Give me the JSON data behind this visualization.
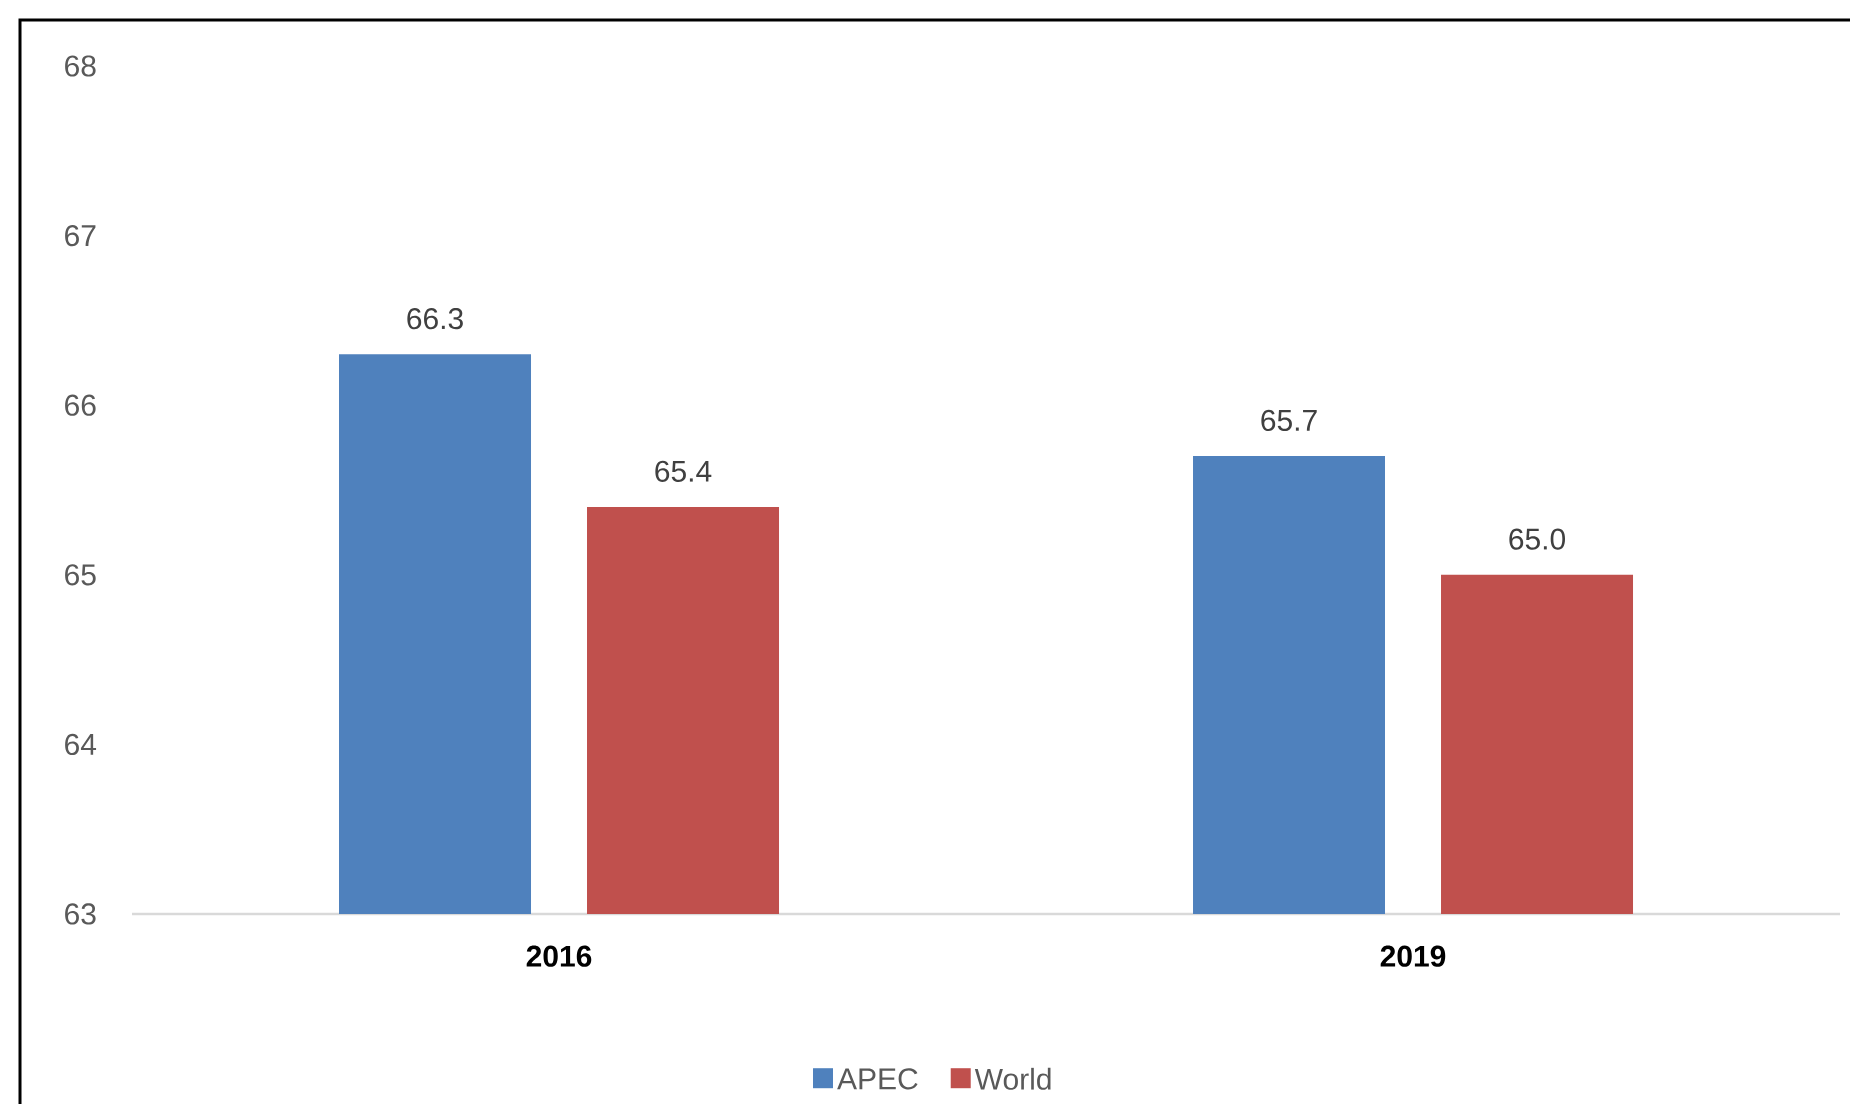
{
  "chart_data": {
    "type": "bar",
    "categories": [
      "2016",
      "2019"
    ],
    "series": [
      {
        "name": "APEC",
        "color": "#4f81bd",
        "values": [
          66.3,
          65.7
        ],
        "value_labels": [
          "66.3",
          "65.7"
        ]
      },
      {
        "name": "World",
        "color": "#c0504d",
        "values": [
          65.4,
          65.0
        ],
        "value_labels": [
          "65.4",
          "65.0"
        ]
      }
    ],
    "ylim": [
      63,
      68
    ],
    "yticks": [
      63,
      64,
      65,
      66,
      67,
      68
    ],
    "legend": "bottom"
  }
}
